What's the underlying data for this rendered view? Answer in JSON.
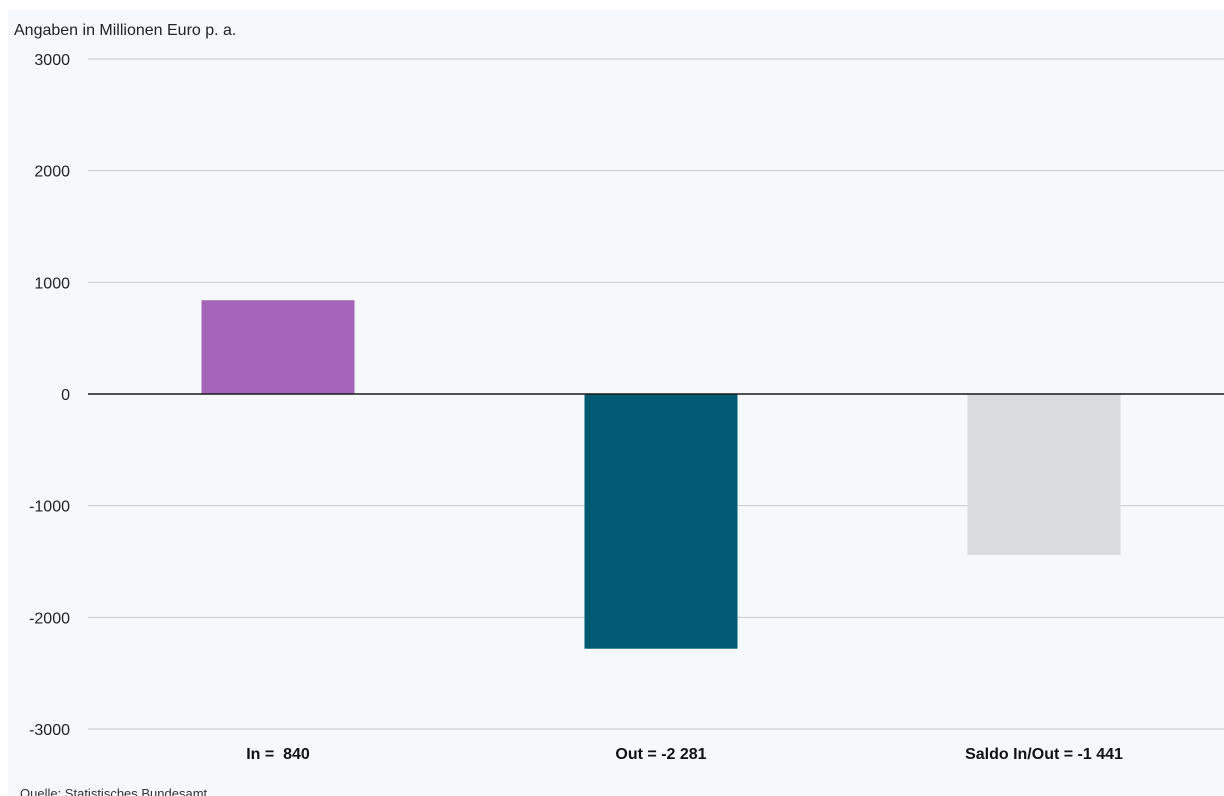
{
  "chart_data": {
    "type": "bar",
    "title": "",
    "ylabel": "Angaben in Millionen Euro p. a.",
    "xlabel": "",
    "ylim": [
      -3000,
      3000
    ],
    "yticks": [
      "3000",
      "2000",
      "1000",
      "0",
      "-1000",
      "-2000",
      "-3000"
    ],
    "ytick_values": [
      3000,
      2000,
      1000,
      0,
      -1000,
      -2000,
      -3000
    ],
    "categories": [
      "In =  840",
      "Out = -2 281",
      "Saldo In/Out = -1 441"
    ],
    "values": [
      840,
      -2281,
      -1441
    ],
    "colors": [
      "#a566b9",
      "#005a74",
      "#d9dcdf"
    ],
    "grid": true,
    "legend": "none"
  },
  "source": "Quelle: Statistisches Bundesamt"
}
